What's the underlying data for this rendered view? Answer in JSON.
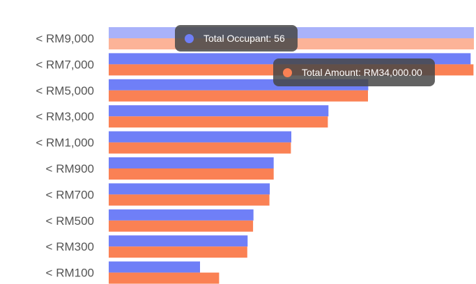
{
  "chart_data": {
    "type": "bar",
    "orientation": "horizontal",
    "categories": [
      "< RM9,000",
      "< RM7,000",
      "< RM5,000",
      "< RM3,000",
      "< RM1,000",
      "< RM900",
      "< RM700",
      "< RM500",
      "< RM300",
      "< RM100"
    ],
    "series": [
      {
        "name": "Total Occupant",
        "color": "#6f7ff7",
        "values": [
          56,
          55.5,
          39.8,
          33.7,
          28,
          25.3,
          24.7,
          22.2,
          21.3,
          14
        ]
      },
      {
        "name": "Total Amount",
        "color": "#fa8154",
        "values": [
          34000,
          33960,
          24140,
          20400,
          16960,
          15360,
          14960,
          13440,
          12900,
          10280
        ]
      }
    ],
    "xlim_occupant": [
      0,
      56
    ],
    "xlim_amount": [
      0,
      34000
    ],
    "grid": false,
    "legend": "none",
    "hovered_category": "< RM9,000"
  },
  "tooltips": [
    {
      "label": "Total Occupant: 56",
      "color": "#6f7ff7"
    },
    {
      "label": "Total Amount: RM34,000.00",
      "color": "#fa8154"
    }
  ]
}
